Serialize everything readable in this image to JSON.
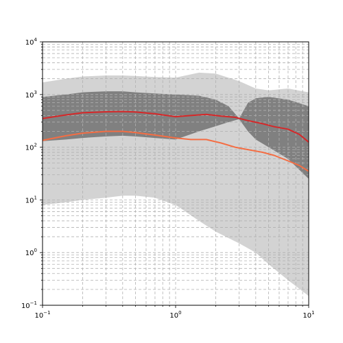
{
  "chart_data": {
    "type": "line",
    "xscale": "log",
    "yscale": "log",
    "xlim": [
      0.1,
      10
    ],
    "ylim": [
      0.1,
      10000
    ],
    "grid": true,
    "grid_style": "dashed",
    "title": "",
    "xlabel": "",
    "ylabel": "",
    "x_ticks": [
      {
        "value": 0.1,
        "base": "10",
        "exp": "−1"
      },
      {
        "value": 1,
        "base": "10",
        "exp": "0"
      },
      {
        "value": 10,
        "base": "10",
        "exp": "1"
      }
    ],
    "y_ticks": [
      {
        "value": 0.1,
        "base": "10",
        "exp": "−1"
      },
      {
        "value": 1,
        "base": "10",
        "exp": "0"
      },
      {
        "value": 10,
        "base": "10",
        "exp": "1"
      },
      {
        "value": 100,
        "base": "10",
        "exp": "2"
      },
      {
        "value": 1000,
        "base": "10",
        "exp": "3"
      },
      {
        "value": 10000,
        "base": "10",
        "exp": "4"
      }
    ],
    "bands": [
      {
        "role": "outer-envelope",
        "color": "#d3d3d3",
        "x": [
          0.1,
          0.15,
          0.2,
          0.3,
          0.4,
          0.5,
          0.7,
          1,
          1.5,
          2,
          3,
          4,
          5,
          7,
          10
        ],
        "upper": [
          1700,
          2000,
          2200,
          2300,
          2300,
          2250,
          2150,
          2100,
          2600,
          2500,
          1800,
          1300,
          1200,
          1300,
          1100
        ],
        "lower": [
          8,
          9,
          10,
          11,
          12,
          12,
          11,
          8,
          4,
          2.5,
          1.5,
          1,
          0.6,
          0.3,
          0.15
        ]
      },
      {
        "role": "inner-envelope",
        "color": "#808080",
        "x": [
          0.1,
          0.15,
          0.2,
          0.3,
          0.4,
          0.5,
          0.7,
          1,
          1.5,
          2,
          2.5,
          3,
          3.5,
          4,
          5,
          7,
          10
        ],
        "upper": [
          900,
          1000,
          1100,
          1150,
          1150,
          1100,
          1050,
          1000,
          950,
          800,
          600,
          350,
          700,
          850,
          900,
          800,
          600
        ],
        "lower": [
          130,
          140,
          150,
          160,
          165,
          160,
          150,
          140,
          200,
          250,
          300,
          340,
          200,
          140,
          100,
          60,
          25
        ]
      }
    ],
    "series": [
      {
        "color": "#d62728",
        "x": [
          0.1,
          0.15,
          0.2,
          0.3,
          0.4,
          0.5,
          0.7,
          1,
          1.3,
          1.7,
          2.2,
          2.8,
          3.5,
          4.5,
          5.5,
          7,
          8.5,
          10
        ],
        "values": [
          350,
          410,
          450,
          470,
          475,
          465,
          430,
          380,
          400,
          420,
          390,
          370,
          320,
          280,
          245,
          220,
          175,
          125
        ]
      },
      {
        "color": "#f46d43",
        "x": [
          0.1,
          0.15,
          0.2,
          0.3,
          0.4,
          0.5,
          0.7,
          1,
          1.3,
          1.7,
          2.2,
          2.8,
          3.5,
          4.5,
          5.5,
          7,
          8.5,
          10
        ],
        "values": [
          135,
          165,
          185,
          200,
          200,
          190,
          170,
          150,
          140,
          140,
          120,
          100,
          90,
          80,
          70,
          55,
          45,
          35
        ]
      }
    ]
  }
}
